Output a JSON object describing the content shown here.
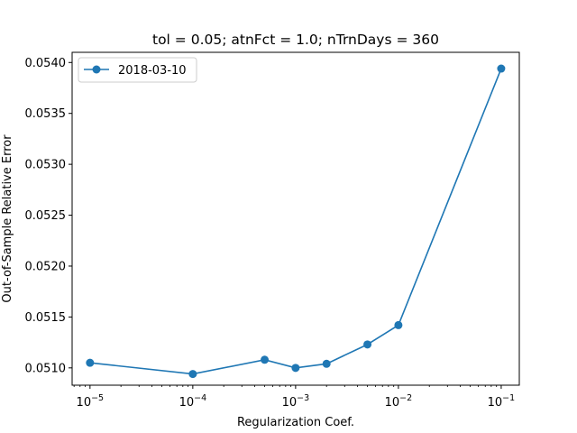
{
  "chart_data": {
    "type": "line",
    "title": "tol = 0.05; atnFct = 1.0; nTrnDays = 360",
    "xlabel": "Regularization Coef.",
    "ylabel": "Out-of-Sample Relative Error",
    "xscale": "log",
    "xlim": [
      6.7e-06,
      0.15
    ],
    "ylim": [
      0.05083,
      0.0541
    ],
    "x_ticks": [
      {
        "base": "10",
        "exp": "−5",
        "value": 1e-05
      },
      {
        "base": "10",
        "exp": "−4",
        "value": 0.0001
      },
      {
        "base": "10",
        "exp": "−3",
        "value": 0.001
      },
      {
        "base": "10",
        "exp": "−2",
        "value": 0.01
      },
      {
        "base": "10",
        "exp": "−1",
        "value": 0.1
      }
    ],
    "y_ticks": [
      "0.0510",
      "0.0515",
      "0.0520",
      "0.0525",
      "0.0530",
      "0.0535",
      "0.0540"
    ],
    "grid": false,
    "legend_position": "top-left",
    "series": [
      {
        "name": "2018-03-10",
        "color": "#1f77b4",
        "marker": "circle",
        "x": [
          1e-05,
          0.0001,
          0.0005,
          0.001,
          0.002,
          0.005,
          0.01,
          0.1
        ],
        "y": [
          0.05105,
          0.05094,
          0.05108,
          0.051,
          0.05104,
          0.05123,
          0.05142,
          0.05394
        ]
      }
    ]
  }
}
